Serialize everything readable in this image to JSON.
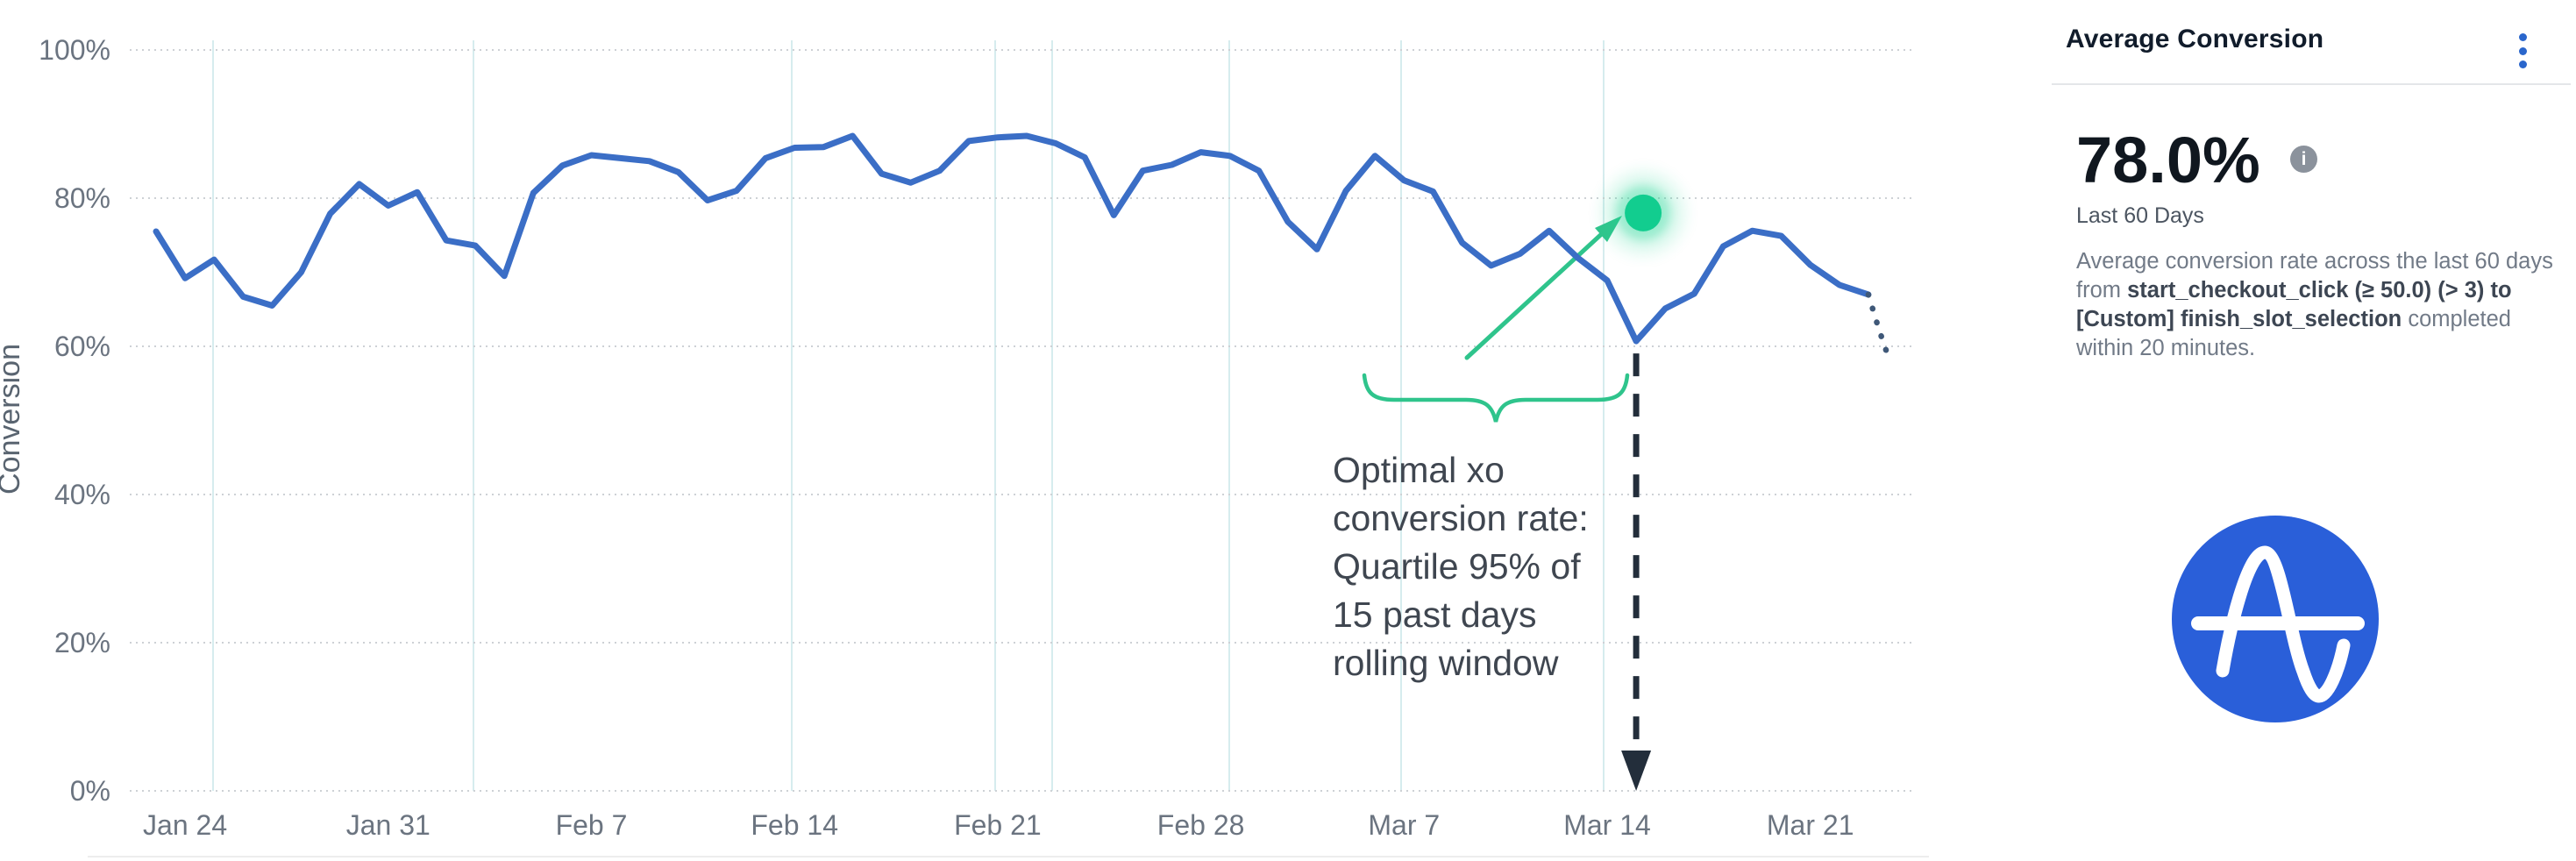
{
  "chart": {
    "axis_title_y": "Conversion",
    "y_tick_labels": [
      "100%",
      "80%",
      "60%",
      "40%",
      "20%",
      "0%"
    ],
    "x_tick_labels": [
      "Jan 24",
      "Jan 31",
      "Feb 7",
      "Feb 14",
      "Feb 21",
      "Feb 28",
      "Mar 7",
      "Mar 14",
      "Mar 21"
    ],
    "annotation_lines": [
      "Optimal xo",
      "conversion rate:",
      "Quartile 95% of",
      "15 past days",
      "rolling window"
    ]
  },
  "chart_data": {
    "type": "line",
    "title": "",
    "xlabel": "",
    "ylabel": "Conversion",
    "ylim": [
      0,
      100
    ],
    "y_ticks_percent": [
      0,
      20,
      40,
      60,
      80,
      100
    ],
    "x_tick_labels": [
      "Jan 24",
      "Jan 31",
      "Feb 7",
      "Feb 14",
      "Feb 21",
      "Feb 28",
      "Mar 7",
      "Mar 14",
      "Mar 21"
    ],
    "grid": "horizontal-dotted and vertical-light-teal",
    "legend_position": "none",
    "series": [
      {
        "name": "Conversion",
        "color": "#3b6ec6",
        "dates": [
          "Jan 23",
          "Jan 24",
          "Jan 25",
          "Jan 26",
          "Jan 27",
          "Jan 28",
          "Jan 29",
          "Jan 30",
          "Jan 31",
          "Feb 1",
          "Feb 2",
          "Feb 3",
          "Feb 4",
          "Feb 5",
          "Feb 6",
          "Feb 7",
          "Feb 8",
          "Feb 9",
          "Feb 10",
          "Feb 11",
          "Feb 12",
          "Feb 13",
          "Feb 14",
          "Feb 15",
          "Feb 16",
          "Feb 17",
          "Feb 18",
          "Feb 19",
          "Feb 20",
          "Feb 21",
          "Feb 22",
          "Feb 23",
          "Feb 24",
          "Feb 25",
          "Feb 26",
          "Feb 27",
          "Feb 28",
          "Mar 1",
          "Mar 2",
          "Mar 3",
          "Mar 4",
          "Mar 5",
          "Mar 6",
          "Mar 7",
          "Mar 8",
          "Mar 9",
          "Mar 10",
          "Mar 11",
          "Mar 12",
          "Mar 13",
          "Mar 14",
          "Mar 15",
          "Mar 16",
          "Mar 17",
          "Mar 18",
          "Mar 19",
          "Mar 20",
          "Mar 21",
          "Mar 22",
          "Mar 23"
        ],
        "values": [
          75.5,
          69.2,
          71.7,
          66.7,
          65.5,
          70.0,
          77.9,
          81.9,
          79.0,
          80.8,
          74.3,
          73.6,
          69.5,
          80.7,
          84.4,
          85.8,
          85.4,
          85.0,
          83.5,
          79.7,
          81.0,
          85.4,
          86.8,
          86.9,
          88.4,
          83.3,
          82.1,
          83.7,
          87.7,
          88.2,
          88.4,
          87.4,
          85.5,
          77.7,
          83.7,
          84.5,
          86.2,
          85.7,
          83.7,
          76.8,
          73.1,
          81.0,
          85.7,
          82.4,
          80.9,
          74.0,
          70.9,
          72.5,
          75.6,
          71.9,
          68.9,
          60.7,
          65.1,
          67.1,
          73.5,
          75.6,
          74.9,
          71.0,
          68.3,
          67.0
        ]
      }
    ],
    "projection": {
      "style": "dotted",
      "note": "dotted continuation after last solid point",
      "values": [
        62.5,
        58.5
      ]
    },
    "highlight_point": {
      "date": "Mar 15",
      "value": 78.0,
      "color": "#12cd8f",
      "style": "glowing dot"
    },
    "marker_line": {
      "date": "Mar 15",
      "style": "black dashed vertical arrow pointing down to x-axis"
    },
    "annotation": "Optimal xo conversion rate: Quartile 95% of 15 past days rolling window"
  },
  "panel": {
    "title": "Average Conversion",
    "value": "78.0%",
    "info_icon_glyph": "i",
    "period": "Last 60 Days",
    "description_segments": [
      {
        "text": "Average conversion rate across the last 60 days from ",
        "bold": false
      },
      {
        "text": "start_checkout_click (≥ 50.0) (> 3) to [Custom] finish_slot_selection",
        "bold": true
      },
      {
        "text": " completed within 20 minutes.",
        "bold": false
      }
    ]
  },
  "colors": {
    "series_blue": "#3b6ec6",
    "projection_navy": "#3f5878",
    "accent_green": "#2fc48c",
    "dot_green": "#12cd8f",
    "marker_black": "#232e3b",
    "vertical_grid_teal": "#d6ecee",
    "horizontal_grid_gray": "#cdd1d5",
    "kebab_blue": "#2a66cc",
    "logo_blue": "#2a5fd9"
  }
}
